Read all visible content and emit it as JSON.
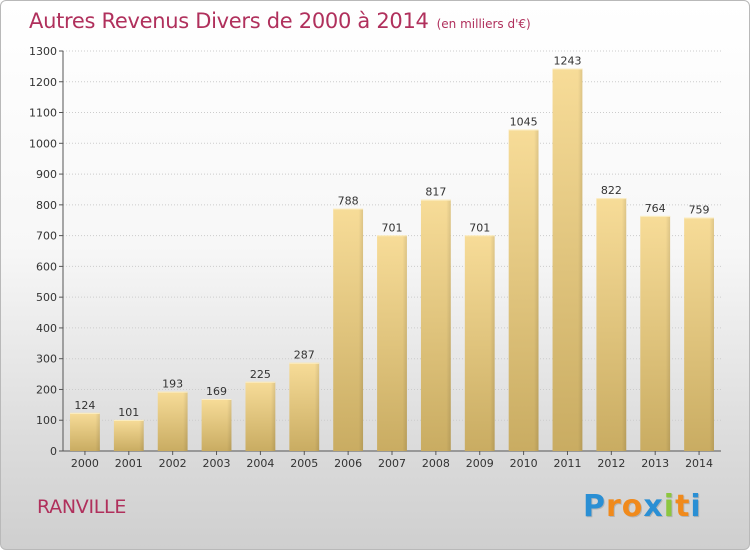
{
  "header": {
    "title": "Autres Revenus Divers de 2000 à 2014",
    "subtitle": "(en milliers d'€)"
  },
  "footer": {
    "city": "RANVILLE",
    "logo_letters": [
      "P",
      "r",
      "o",
      "x",
      "i",
      "t",
      "i"
    ],
    "logo_colors": [
      "#2a8fd4",
      "#f08a1c",
      "#f08a1c",
      "#2a8fd4",
      "#8cc63f",
      "#f08a1c",
      "#2a8fd4"
    ]
  },
  "colors": {
    "title": "#b0305c",
    "bar_top": "#f7dc98",
    "bar_bottom": "#c9ac62",
    "grid": "#cccccc"
  },
  "chart_data": {
    "type": "bar",
    "title": "Autres Revenus Divers de 2000 à 2014",
    "subtitle": "(en milliers d'€)",
    "categories": [
      "2000",
      "2001",
      "2002",
      "2003",
      "2004",
      "2005",
      "2006",
      "2007",
      "2008",
      "2009",
      "2010",
      "2011",
      "2012",
      "2013",
      "2014"
    ],
    "values": [
      124,
      101,
      193,
      169,
      225,
      287,
      788,
      701,
      817,
      701,
      1045,
      1243,
      822,
      764,
      759
    ],
    "data_labels": [
      "124",
      "101",
      "193",
      "169",
      "225",
      "287",
      "788",
      "701",
      "817",
      "701",
      "1045",
      "1243",
      "822",
      "764",
      "759"
    ],
    "yticks": [
      0,
      100,
      200,
      300,
      400,
      500,
      600,
      700,
      800,
      900,
      1000,
      1100,
      1200,
      1300
    ],
    "ylim": [
      0,
      1300
    ],
    "grid": true,
    "xlabel": "",
    "ylabel": ""
  }
}
